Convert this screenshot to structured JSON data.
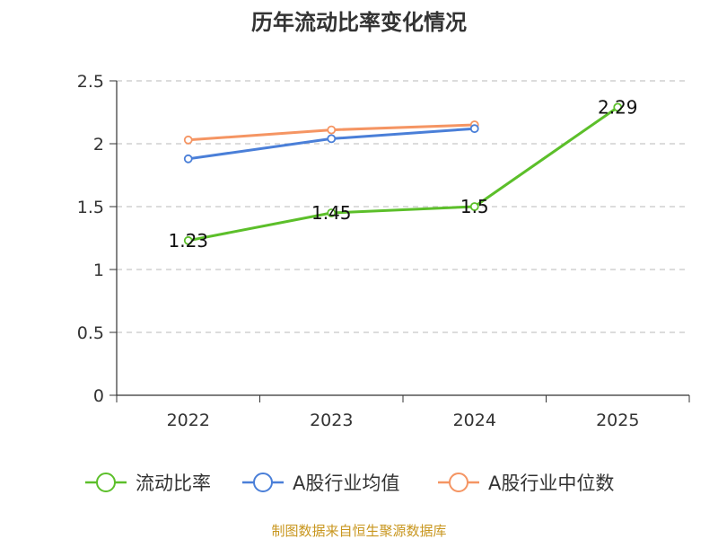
{
  "chart_data": {
    "type": "line",
    "title": "历年流动比率变化情况",
    "categories": [
      "2022",
      "2023",
      "2024",
      "2025"
    ],
    "ylim": [
      0,
      2.5
    ],
    "yticks": [
      "0",
      "0.5",
      "1",
      "1.5",
      "2",
      "2.5"
    ],
    "ytick_values": [
      0,
      0.5,
      1,
      1.5,
      2,
      2.5
    ],
    "grid": true,
    "legend_position": "bottom",
    "series": [
      {
        "name": "流动比率",
        "color": "#5cbf2a",
        "values": [
          1.23,
          1.45,
          1.5,
          2.29
        ],
        "labels": [
          "1.23",
          "1.45",
          "1.5",
          "2.29"
        ]
      },
      {
        "name": "A股行业均值",
        "color": "#4a7fd8",
        "values": [
          1.88,
          2.04,
          2.12,
          null
        ]
      },
      {
        "name": "A股行业中位数",
        "color": "#f59563",
        "values": [
          2.03,
          2.11,
          2.15,
          null
        ]
      }
    ],
    "source": "制图数据来自恒生聚源数据库"
  }
}
